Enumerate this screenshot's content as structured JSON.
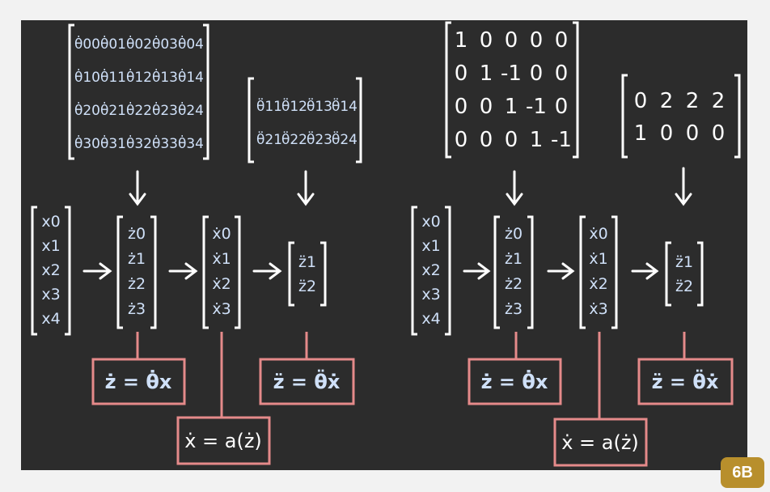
{
  "colors": {
    "board": "#2c2c2c",
    "chalk_white": "#ffffff",
    "chalk_blue": "#cfe0f8",
    "box_border": "#e58a8a",
    "badge": "#b88f2c"
  },
  "badge": "6B",
  "left": {
    "theta_dot_matrix": [
      [
        "θ̇00",
        "θ̇01",
        "θ̇02",
        "θ̇03",
        "θ̇04"
      ],
      [
        "θ̇10",
        "θ̇11",
        "θ̇12",
        "θ̇13",
        "θ̇14"
      ],
      [
        "θ̇20",
        "θ̇21",
        "θ̇22",
        "θ̇23",
        "θ̇24"
      ],
      [
        "θ̇30",
        "θ̇31",
        "θ̇32",
        "θ̇33",
        "θ̇34"
      ]
    ],
    "theta_ddot_matrix": [
      [
        "θ̈11",
        "θ̈12",
        "θ̈13",
        "θ̈14"
      ],
      [
        "θ̈21",
        "θ̈22",
        "θ̈23",
        "θ̈24"
      ]
    ],
    "x_vector": [
      "x0",
      "x1",
      "x2",
      "x3",
      "x4"
    ],
    "z_dot_vector": [
      "ż0",
      "ż1",
      "ż2",
      "ż3"
    ],
    "x_dot_vector": [
      "ẋ0",
      "ẋ1",
      "ẋ2",
      "ẋ3"
    ],
    "z_ddot_vector": [
      "z̈1",
      "z̈2"
    ],
    "eq_z_dot": "ż = θ̇x",
    "eq_x_dot": "ẋ = a(ż)",
    "eq_z_ddot": "z̈ = θ̈ẋ"
  },
  "right": {
    "matrix_a": [
      [
        "1",
        "0",
        "0",
        "0",
        "0"
      ],
      [
        "0",
        "1",
        "-1",
        "0",
        "0"
      ],
      [
        "0",
        "0",
        "1",
        "-1",
        "0"
      ],
      [
        "0",
        "0",
        "0",
        "1",
        "-1"
      ]
    ],
    "matrix_b": [
      [
        "0",
        "2",
        "2",
        "2"
      ],
      [
        "1",
        "0",
        "0",
        "0"
      ]
    ],
    "x_vector": [
      "x0",
      "x1",
      "x2",
      "x3",
      "x4"
    ],
    "z_dot_vector": [
      "ż0",
      "ż1",
      "ż2",
      "ż3"
    ],
    "x_dot_vector": [
      "ẋ0",
      "ẋ1",
      "ẋ2",
      "ẋ3"
    ],
    "z_ddot_vector": [
      "z̈1",
      "z̈2"
    ],
    "eq_z_dot": "ż = θ̇x",
    "eq_x_dot": "ẋ = a(ż)",
    "eq_z_ddot": "z̈ = θ̈ẋ"
  }
}
